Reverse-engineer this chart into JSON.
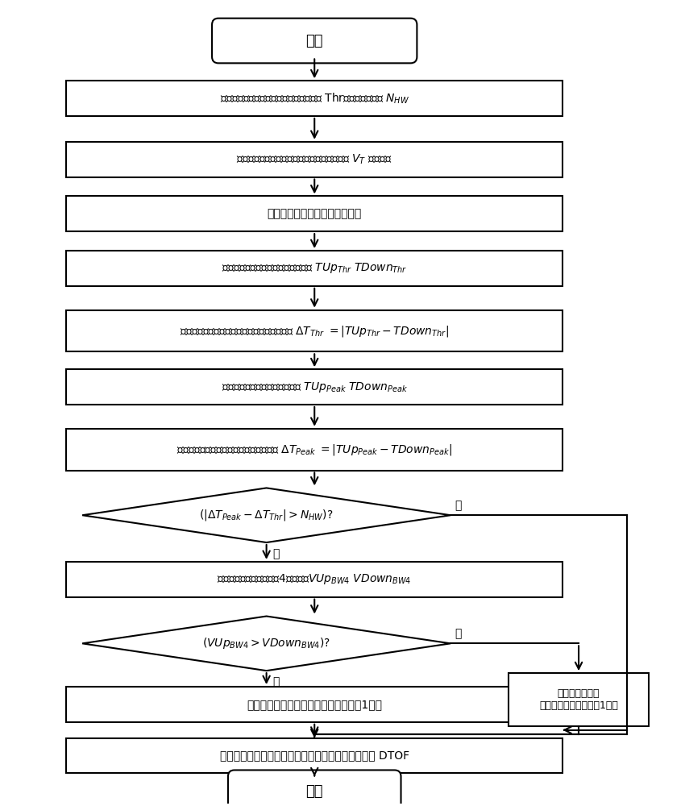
{
  "bg_color": "#ffffff",
  "box_color": "#ffffff",
  "box_edge_color": "#000000",
  "arrow_color": "#000000",
  "text_color": "#000000",
  "start_text": "开始",
  "end_text": "结束",
  "yes_text": "是",
  "no_text": "否",
  "box1_text": "采集上行、下行回波信号、设置包络阙值 Thr、触发移波点数 $N_{HW}$",
  "box2_text": "上行、下行回波信号按照峰值软放至目标幅值 $V_T$ 同比放大",
  "box3_text": "获取上行、下行回波的包络信号",
  "box4_text": "计算上行、下行包络阙值对应的时间 $TUp_{Thr}$ $TDown_{Thr}$",
  "box5_text": "计算上行、下行包络阙值对应时间之差绝对值 $\\Delta T_{Thr}$ $=|TUp_{Thr}-TDown_{Thr}|$",
  "box6_text": "计算上行、下行峰值对应的时间 $TUp_{Peak}$ $TDown_{Peak}$",
  "box7_text": "计算上行、下行峰值对应时间之差绝对值 $\\Delta T_{Peak}$ $=|TUp_{Peak}-TDown_{Peak}|$",
  "dia1_text": "$(|\\Delta T_{Peak}-\\Delta T_{Thr}|>N_{HW})$?",
  "box8_text": "计算上行、下行峰值前第4个波幅值$VUp_{BW4}$ $VDown_{BW4}$",
  "dia2_text": "$(VUp_{BW4}>VDown_{BW4})$?",
  "box9_text": "上行回波移波，上行回波阙值触发前移1个波",
  "box10_text": "上行、下行回波阙值触发波后过零点之差即为时间差 DTOF",
  "box11_text": "下行回波移波，\n下行回波阙值触发前移1个波"
}
